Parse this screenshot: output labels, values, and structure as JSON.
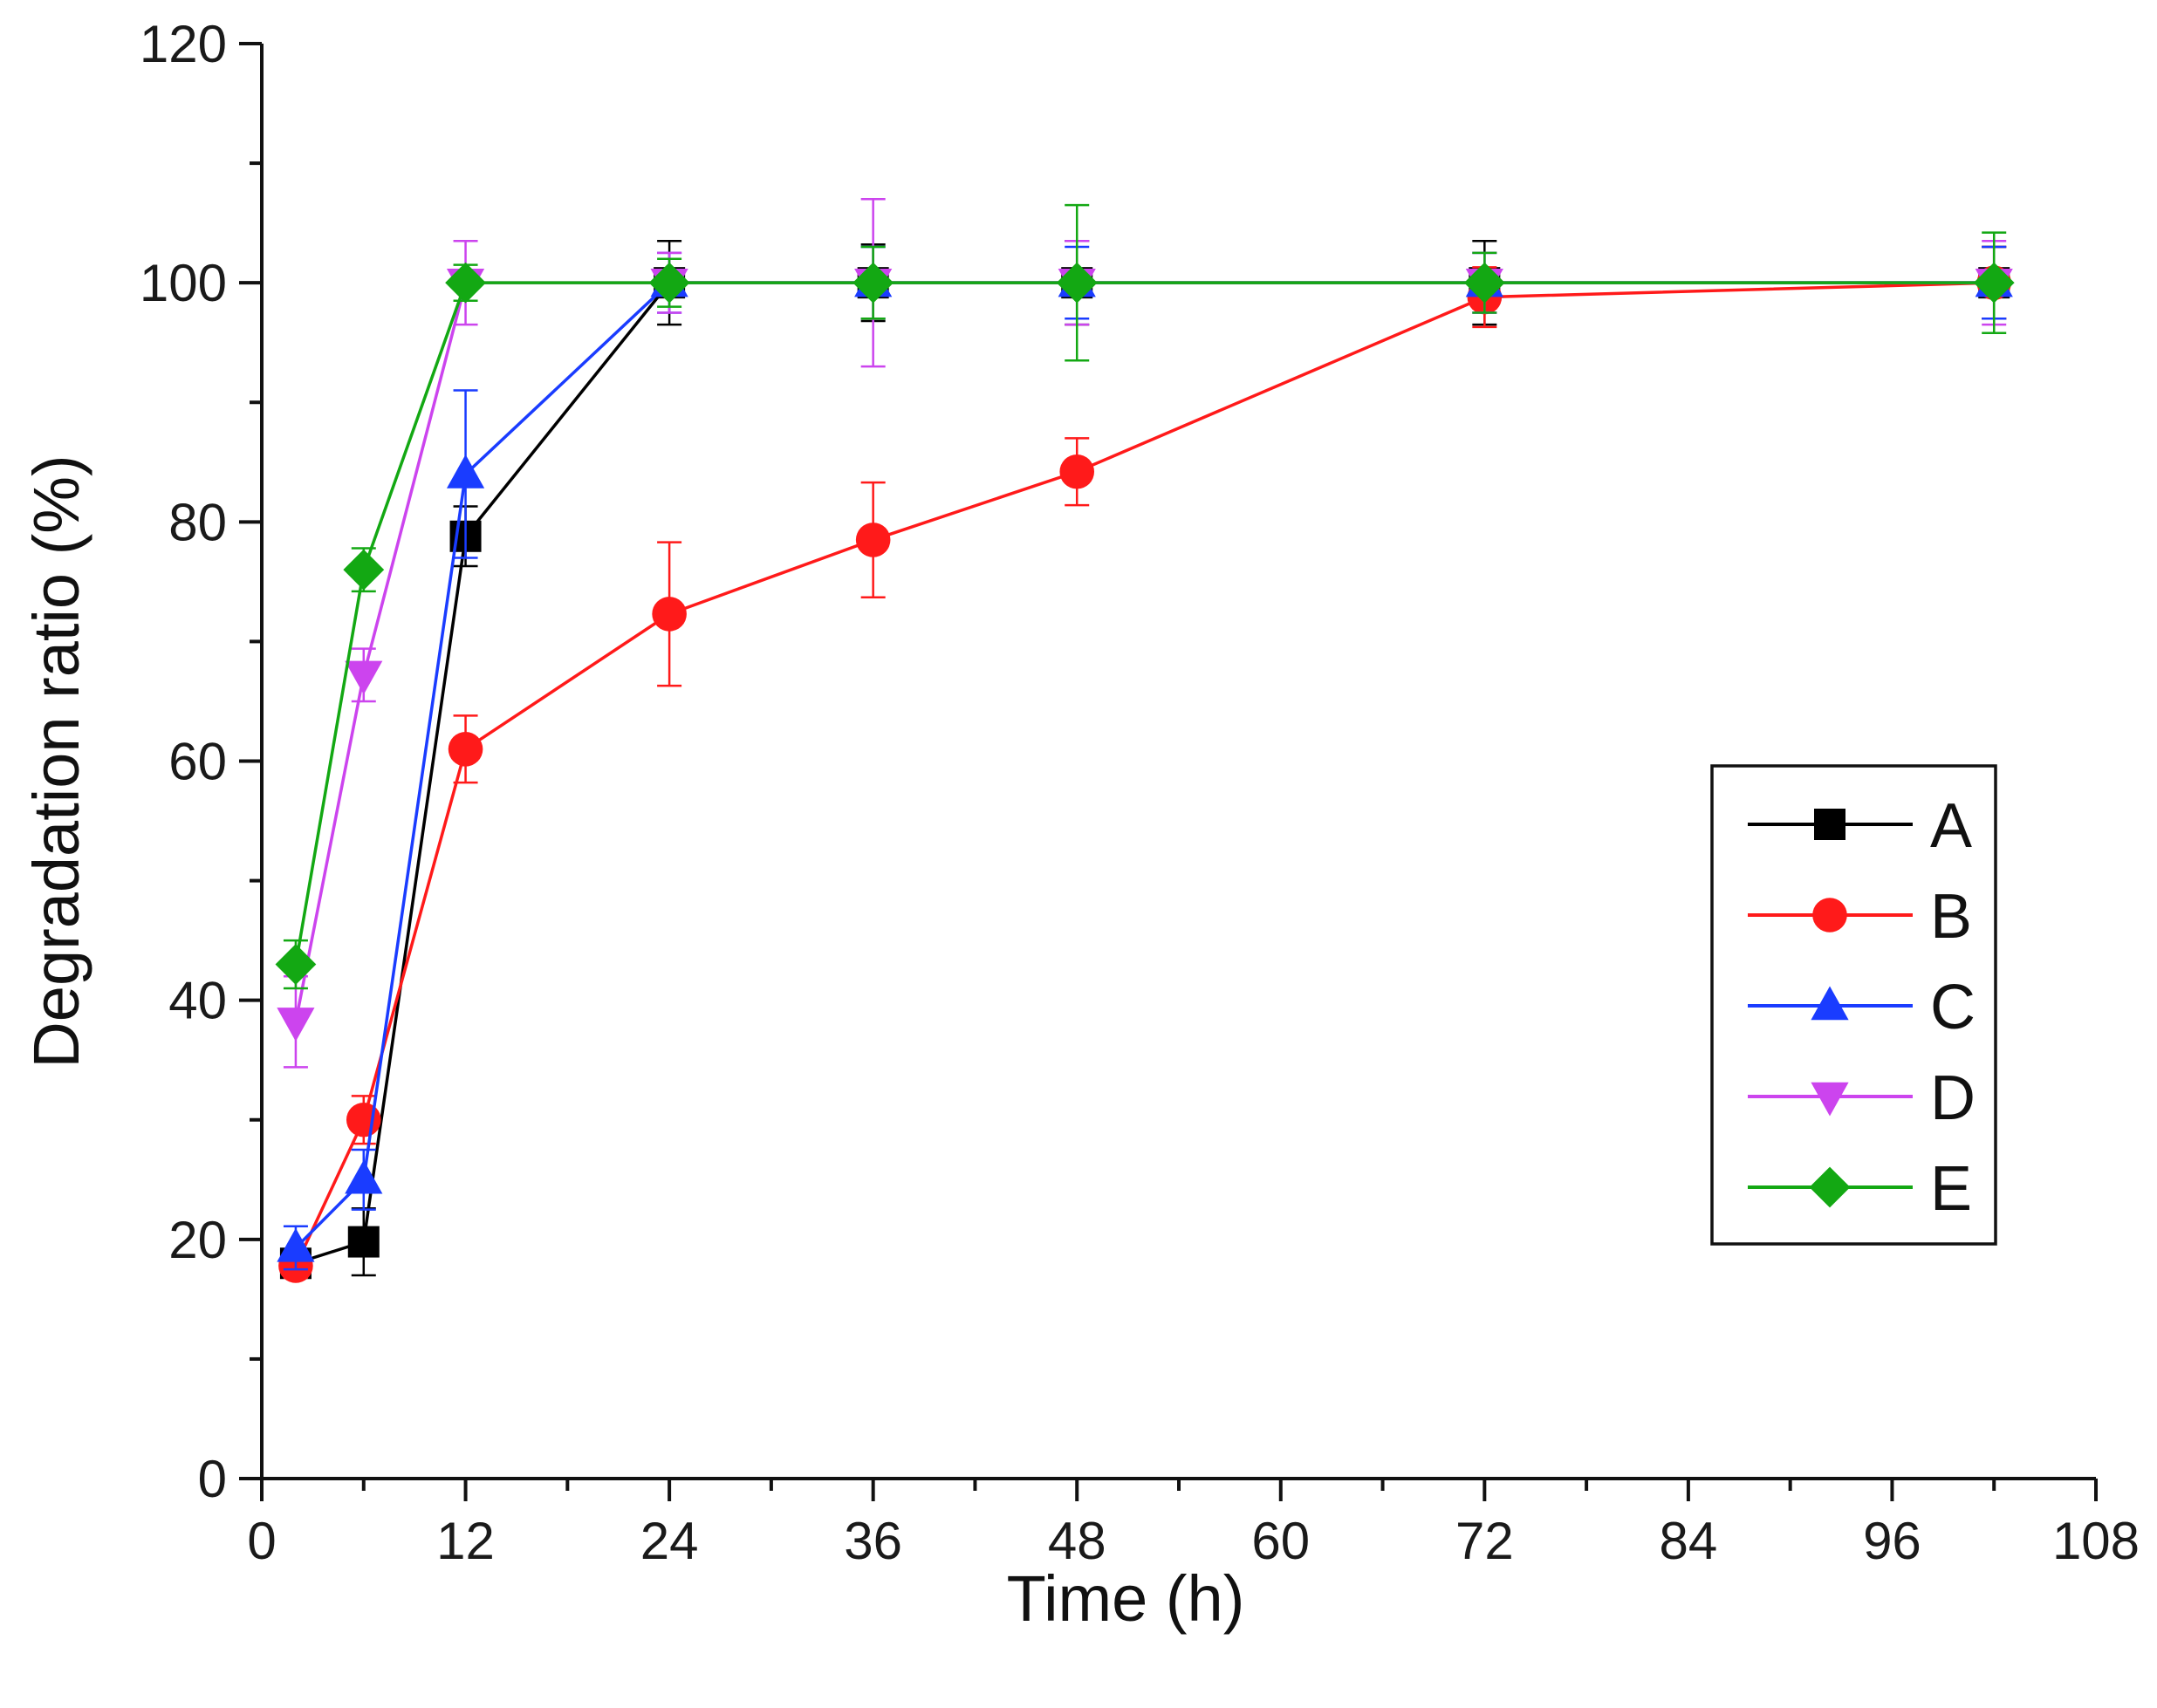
{
  "chart_data": {
    "type": "line",
    "xlabel": "Time (h)",
    "ylabel": "Degradation ratio (%)",
    "xlim": [
      0,
      108
    ],
    "ylim": [
      0,
      120
    ],
    "x_ticks": [
      0,
      12,
      24,
      36,
      48,
      60,
      72,
      84,
      96,
      108
    ],
    "y_ticks": [
      0,
      20,
      40,
      60,
      80,
      100,
      120
    ],
    "grid": false,
    "legend_position": "right",
    "x": [
      2,
      6,
      12,
      24,
      36,
      48,
      72,
      102
    ],
    "series": [
      {
        "name": "A",
        "color": "#000000",
        "marker": "square",
        "values": [
          18,
          19.8,
          78.8,
          100,
          100,
          100,
          100,
          100
        ],
        "errors": [
          1.2,
          2.8,
          2.5,
          3.5,
          3.2,
          3.5,
          3.5,
          3.0
        ]
      },
      {
        "name": "B",
        "color": "#ff1a1a",
        "marker": "circle",
        "values": [
          17.8,
          30,
          61,
          72.3,
          78.5,
          84.2,
          98.8,
          100
        ],
        "errors": [
          1.0,
          2.0,
          2.8,
          6.0,
          4.8,
          2.8,
          2.5,
          3.0
        ]
      },
      {
        "name": "C",
        "color": "#1a3cff",
        "marker": "triangle-up",
        "values": [
          19.3,
          25,
          84,
          100,
          100,
          100,
          100,
          100
        ],
        "errors": [
          1.8,
          2.5,
          7.0,
          2.5,
          3.0,
          3.0,
          2.5,
          3.0
        ]
      },
      {
        "name": "D",
        "color": "#cc44ee",
        "marker": "triangle-down",
        "values": [
          38.2,
          67.2,
          100,
          100,
          100,
          100,
          100,
          100
        ],
        "errors": [
          3.8,
          2.2,
          3.5,
          2.5,
          7.0,
          3.5,
          2.5,
          3.5
        ]
      },
      {
        "name": "E",
        "color": "#13a813",
        "marker": "diamond",
        "values": [
          43,
          76,
          100,
          100,
          100,
          100,
          100,
          100
        ],
        "errors": [
          2.0,
          1.8,
          1.5,
          2.0,
          3.0,
          6.5,
          2.5,
          4.2
        ]
      }
    ]
  }
}
